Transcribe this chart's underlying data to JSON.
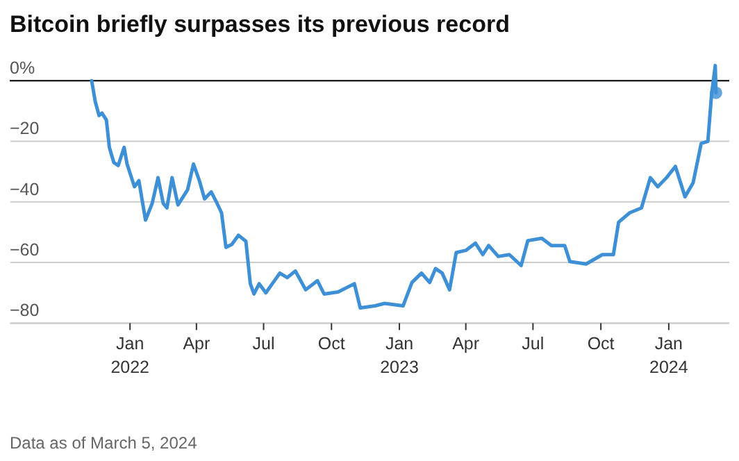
{
  "chart_data": {
    "type": "line",
    "title": "Bitcoin briefly surpasses its previous record",
    "annotations": [
      "Data as of March 5, 2024"
    ],
    "xlim": [
      "2021-07-22",
      "2024-03-23"
    ],
    "xticks": [
      {
        "value": "2022-01-01",
        "label": "Jan\n2022"
      },
      {
        "value": "2022-04-01",
        "label": "Apr"
      },
      {
        "value": "2022-07-01",
        "label": "Jul"
      },
      {
        "value": "2022-10-01",
        "label": "Oct"
      },
      {
        "value": "2023-01-01",
        "label": "Jan\n2023"
      },
      {
        "value": "2023-04-01",
        "label": "Apr"
      },
      {
        "value": "2023-07-01",
        "label": "Jul"
      },
      {
        "value": "2023-10-01",
        "label": "Oct"
      },
      {
        "value": "2024-01-01",
        "label": "Jan\n2024"
      }
    ],
    "ylim": [
      -80,
      6
    ],
    "yticks": [
      {
        "value": 0,
        "label": "0%"
      },
      {
        "value": -20,
        "label": "−20"
      },
      {
        "value": -40,
        "label": "−40"
      },
      {
        "value": -60,
        "label": "−60"
      },
      {
        "value": -80,
        "label": "−80"
      }
    ],
    "grid": "y",
    "line_style": "solid",
    "ref_lines": [
      {
        "axis": "y",
        "value": 0,
        "color": "#000000"
      }
    ],
    "series": [
      {
        "color": "#3d8fd6",
        "marker": "none",
        "x": [
          "2021-11-10",
          "2021-11-15",
          "2021-11-20",
          "2021-11-24",
          "2021-11-30",
          "2021-12-04",
          "2021-12-10",
          "2021-12-16",
          "2021-12-24",
          "2021-12-28",
          "2022-01-07",
          "2022-01-13",
          "2022-01-22",
          "2022-01-31",
          "2022-02-08",
          "2022-02-15",
          "2022-02-20",
          "2022-02-27",
          "2022-03-07",
          "2022-03-20",
          "2022-03-28",
          "2022-04-05",
          "2022-04-12",
          "2022-04-21",
          "2022-04-29",
          "2022-05-05",
          "2022-05-11",
          "2022-05-19",
          "2022-05-28",
          "2022-06-07",
          "2022-06-13",
          "2022-06-18",
          "2022-06-25",
          "2022-07-04",
          "2022-07-14",
          "2022-07-23",
          "2022-08-02",
          "2022-08-13",
          "2022-08-27",
          "2022-09-12",
          "2022-09-21",
          "2022-10-10",
          "2022-11-01",
          "2022-11-09",
          "2022-11-29",
          "2022-12-12",
          "2023-01-06",
          "2023-01-18",
          "2023-01-31",
          "2023-02-11",
          "2023-02-19",
          "2023-02-28",
          "2023-03-10",
          "2023-03-19",
          "2023-04-01",
          "2023-04-14",
          "2023-04-24",
          "2023-05-02",
          "2023-05-15",
          "2023-05-30",
          "2023-06-15",
          "2023-06-24",
          "2023-07-13",
          "2023-07-26",
          "2023-08-13",
          "2023-08-20",
          "2023-09-11",
          "2023-10-03",
          "2023-10-18",
          "2023-10-25",
          "2023-11-09",
          "2023-11-25",
          "2023-12-07",
          "2023-12-17",
          "2023-12-29",
          "2024-01-10",
          "2024-01-23",
          "2024-02-03",
          "2024-02-14",
          "2024-02-23",
          "2024-02-28",
          "2024-03-04",
          "2024-03-05"
        ],
        "values": [
          0,
          -7,
          -11.5,
          -10.7,
          -13,
          -22,
          -27,
          -28,
          -22,
          -27.5,
          -35,
          -33,
          -46,
          -40.5,
          -32,
          -40.5,
          -42,
          -32,
          -41,
          -36,
          -27.5,
          -33,
          -39,
          -36.7,
          -40.5,
          -43.6,
          -55,
          -54,
          -51,
          -53,
          -67,
          -70.4,
          -67,
          -70,
          -66.6,
          -63.5,
          -65,
          -62.8,
          -69,
          -66,
          -70.4,
          -69.7,
          -67,
          -75,
          -74.3,
          -73.5,
          -74.3,
          -66.6,
          -63.5,
          -66.6,
          -62,
          -63.5,
          -69,
          -56.7,
          -56,
          -53.6,
          -57.4,
          -54.4,
          -58,
          -57.4,
          -61,
          -52.8,
          -52,
          -54.4,
          -54.4,
          -59.7,
          -60.5,
          -57.4,
          -57.4,
          -46.7,
          -43.6,
          -42,
          -32,
          -35,
          -32,
          -28.3,
          -38.3,
          -33.7,
          -20.7,
          -20,
          -4.6,
          5,
          -4
        ]
      },
      {
        "type": "scatter",
        "color": "#3d8fd6",
        "marker": "circle",
        "x": [
          "2024-03-05"
        ],
        "values": [
          -4
        ]
      }
    ]
  }
}
